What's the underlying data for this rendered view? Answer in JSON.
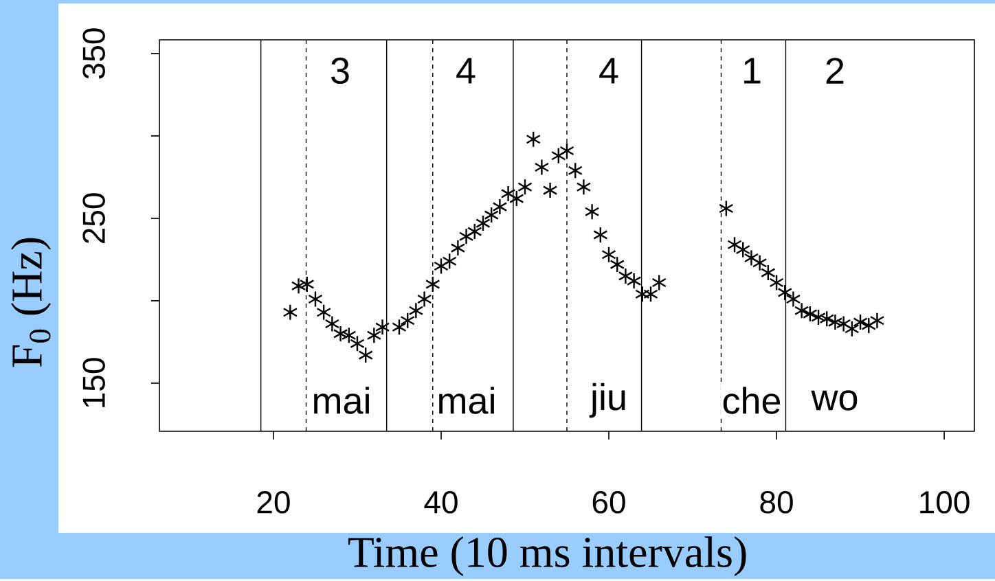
{
  "chart_data": {
    "type": "scatter",
    "xlabel": "Time (10 ms intervals)",
    "ylabel": "F$_{0}$ (Hz)",
    "x": [
      22,
      23,
      24,
      25,
      26,
      27,
      28,
      29,
      30,
      31,
      32,
      33,
      35,
      36,
      37,
      38,
      39,
      40,
      41,
      42,
      43,
      44,
      45,
      46,
      47,
      48,
      49,
      50,
      51,
      52,
      53,
      54,
      55,
      56,
      57,
      58,
      59,
      60,
      61,
      62,
      63,
      64,
      65,
      66,
      74,
      75,
      76,
      77,
      78,
      79,
      80,
      81,
      82,
      83,
      84,
      85,
      86,
      87,
      88,
      89,
      90,
      91,
      92
    ],
    "values": [
      193,
      209,
      210,
      201,
      193,
      186,
      180,
      179,
      174,
      167,
      179,
      184,
      184,
      188,
      194,
      201,
      210,
      221,
      224,
      232,
      239,
      242,
      247,
      252,
      257,
      265,
      262,
      269,
      298,
      281,
      267,
      288,
      291,
      279,
      269,
      254,
      240,
      228,
      222,
      215,
      212,
      204,
      204,
      211,
      256,
      234,
      231,
      226,
      223,
      217,
      211,
      205,
      201,
      194,
      192,
      190,
      189,
      187,
      186,
      183,
      187,
      185,
      188
    ],
    "color": "#000000",
    "marker": "star",
    "xlim": [
      6.4,
      103.6
    ],
    "ylim": [
      120.8,
      358.3
    ],
    "xticks": [
      20,
      40,
      60,
      80,
      100
    ],
    "yticks": [
      150,
      {
        "value": 200,
        "label": null
      },
      250,
      {
        "value": 300,
        "label": null
      },
      350
    ],
    "ref_lines": [
      {
        "axis": "x",
        "value": 18.5,
        "color": "#000000",
        "line_style": "solid"
      },
      {
        "axis": "x",
        "value": 23.9,
        "color": "#000000",
        "line_style": "dashed"
      },
      {
        "axis": "x",
        "value": 33.5,
        "color": "#000000",
        "line_style": "solid"
      },
      {
        "axis": "x",
        "value": 39.0,
        "color": "#000000",
        "line_style": "dashed"
      },
      {
        "axis": "x",
        "value": 48.6,
        "color": "#000000",
        "line_style": "solid"
      },
      {
        "axis": "x",
        "value": 55.0,
        "color": "#000000",
        "line_style": "dashed"
      },
      {
        "axis": "x",
        "value": 63.9,
        "color": "#000000",
        "line_style": "solid"
      },
      {
        "axis": "x",
        "value": 73.4,
        "color": "#000000",
        "line_style": "dashed"
      },
      {
        "axis": "x",
        "value": 81.1,
        "color": "#000000",
        "line_style": "solid"
      }
    ],
    "annotations": [
      "3",
      "4",
      "4",
      "1",
      "2",
      "mai",
      "mai",
      "jiu",
      "che",
      "wo"
    ]
  }
}
